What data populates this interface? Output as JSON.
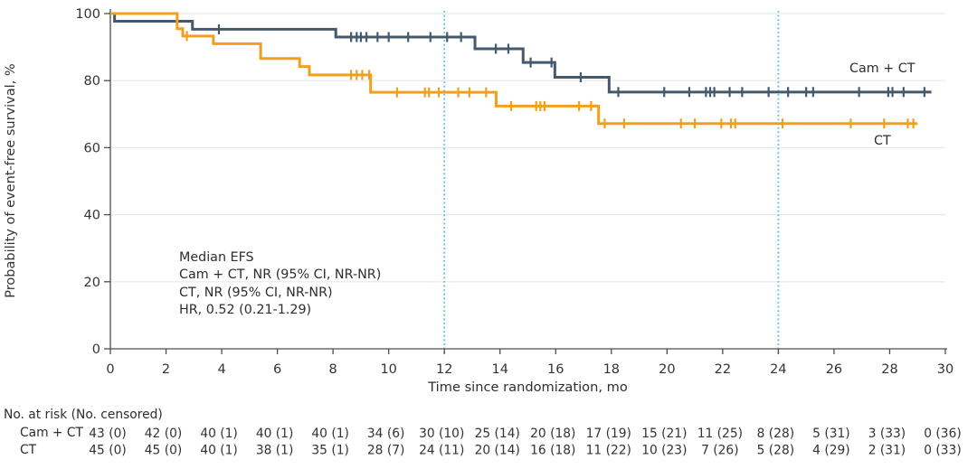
{
  "chart_data": {
    "type": "line",
    "subtype": "kaplan-meier-step",
    "xlabel": "Time since randomization, mo",
    "ylabel": "Probability of event-free survival, %",
    "xlim": [
      0,
      30
    ],
    "ylim": [
      0,
      100
    ],
    "xticks": [
      0,
      2,
      4,
      6,
      8,
      10,
      12,
      14,
      16,
      18,
      20,
      22,
      24,
      26,
      28,
      30
    ],
    "yticks": [
      0,
      20,
      40,
      60,
      80,
      100
    ],
    "grid": "horizontal",
    "reference_lines": {
      "x": [
        12,
        24
      ],
      "style": "dotted"
    },
    "series": [
      {
        "name": "Cam + CT",
        "color": "#46596B",
        "end": 29.5,
        "steps": [
          [
            0,
            100
          ],
          [
            0.15,
            97.7
          ],
          [
            2.95,
            95.3
          ],
          [
            8.1,
            93.0
          ],
          [
            13.1,
            89.5
          ],
          [
            14.83,
            85.4
          ],
          [
            15.97,
            81.0
          ],
          [
            17.92,
            76.6
          ]
        ],
        "censor_ticks": [
          3.9,
          8.65,
          8.85,
          9.0,
          9.2,
          9.6,
          10.0,
          10.7,
          11.5,
          12.1,
          12.6,
          13.85,
          14.3,
          15.1,
          15.85,
          16.9,
          18.25,
          19.9,
          20.8,
          21.4,
          21.55,
          21.7,
          22.25,
          22.7,
          23.65,
          24.35,
          25.0,
          25.25,
          26.9,
          27.95,
          28.1,
          28.5,
          29.25
        ]
      },
      {
        "name": "CT",
        "color": "#F0A01E",
        "end": 29.0,
        "steps": [
          [
            0,
            100
          ],
          [
            2.4,
            95.5
          ],
          [
            2.6,
            93.3
          ],
          [
            3.7,
            91.0
          ],
          [
            5.4,
            86.6
          ],
          [
            6.8,
            84.2
          ],
          [
            7.15,
            81.7
          ],
          [
            9.35,
            76.5
          ],
          [
            13.86,
            72.4
          ],
          [
            17.54,
            67.2
          ]
        ],
        "censor_ticks": [
          2.75,
          8.65,
          8.85,
          9.05,
          9.3,
          10.3,
          11.3,
          11.45,
          11.8,
          12.5,
          12.9,
          13.5,
          14.4,
          15.3,
          15.45,
          15.6,
          16.84,
          17.27,
          17.76,
          18.46,
          20.5,
          21.0,
          21.95,
          22.3,
          22.45,
          24.15,
          26.6,
          27.8,
          28.65,
          28.85
        ]
      }
    ],
    "legend_labels": {
      "camct": "Cam + CT",
      "ct": "CT"
    },
    "annotation": [
      "Median EFS",
      "Cam + CT, NR (95% CI, NR-NR)",
      "CT, NR (95% CI, NR-NR)",
      "HR, 0.52 (0.21-1.29)"
    ],
    "risk_table": {
      "header": "No. at risk (No. censored)",
      "months": [
        0,
        2,
        4,
        6,
        8,
        10,
        12,
        14,
        16,
        18,
        20,
        22,
        24,
        26,
        28,
        30
      ],
      "rows": [
        {
          "label": "Cam + CT",
          "values": [
            "43 (0)",
            "42 (0)",
            "40 (1)",
            "40 (1)",
            "40 (1)",
            "34 (6)",
            "30 (10)",
            "25 (14)",
            "20 (18)",
            "17 (19)",
            "15 (21)",
            "11 (25)",
            "8 (28)",
            "5 (31)",
            "3 (33)",
            "0 (36)"
          ]
        },
        {
          "label": "CT",
          "values": [
            "45 (0)",
            "45 (0)",
            "40 (1)",
            "38 (1)",
            "35 (1)",
            "28 (7)",
            "24 (11)",
            "20 (14)",
            "16 (18)",
            "11 (22)",
            "10 (23)",
            "7 (26)",
            "5 (28)",
            "4 (29)",
            "2 (31)",
            "0 (33)"
          ]
        }
      ]
    },
    "colors": {
      "camct": "#46596B",
      "ct": "#F0A01E",
      "reference": "#4FBFE8",
      "grid": "#E8E8E8",
      "axis": "#4D4D4D",
      "text": "#333333"
    }
  }
}
